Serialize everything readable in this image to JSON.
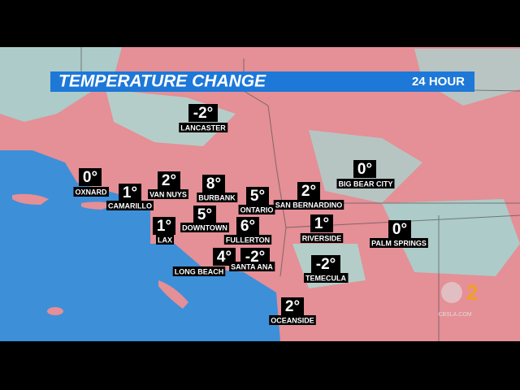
{
  "header": {
    "title": "TEMPERATURE CHANGE",
    "subtitle": "24 HOUR"
  },
  "cities": [
    {
      "name": "LANCASTER",
      "temp": "-2°"
    },
    {
      "name": "OXNARD",
      "temp": "0°"
    },
    {
      "name": "CAMARILLO",
      "temp": "1°"
    },
    {
      "name": "VAN NUYS",
      "temp": "2°"
    },
    {
      "name": "BURBANK",
      "temp": "8°"
    },
    {
      "name": "ONTARIO",
      "temp": "5°"
    },
    {
      "name": "SAN BERNARDINO",
      "temp": "2°"
    },
    {
      "name": "BIG BEAR CITY",
      "temp": "0°"
    },
    {
      "name": "DOWNTOWN",
      "temp": "5°"
    },
    {
      "name": "LAX",
      "temp": "1°"
    },
    {
      "name": "FULLERTON",
      "temp": "6°"
    },
    {
      "name": "RIVERSIDE",
      "temp": "1°"
    },
    {
      "name": "PALM SPRINGS",
      "temp": "0°"
    },
    {
      "name": "LONG BEACH",
      "temp": "4°"
    },
    {
      "name": "SANTA ANA",
      "temp": "-2°"
    },
    {
      "name": "TEMECULA",
      "temp": "-2°"
    },
    {
      "name": "OCEANSIDE",
      "temp": "2°"
    }
  ],
  "logo": {
    "text": "CBSLA.COM"
  }
}
